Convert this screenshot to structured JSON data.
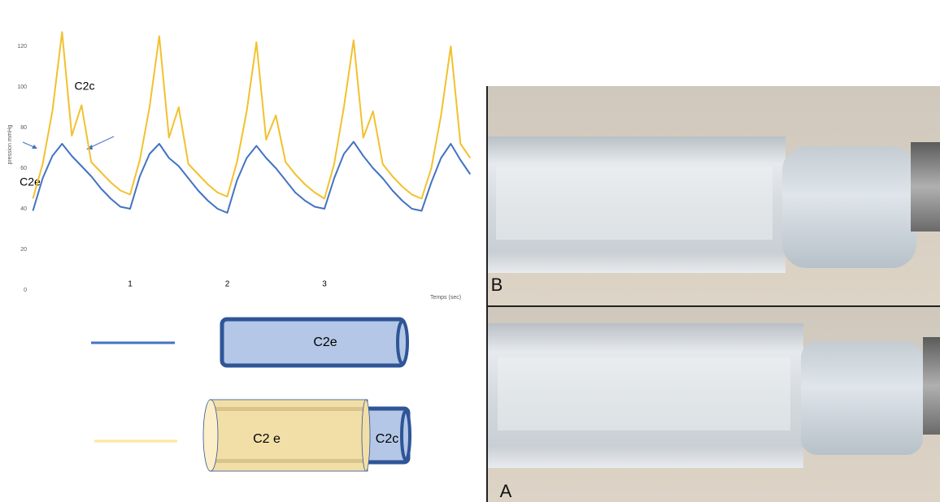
{
  "chart_data": {
    "type": "line",
    "x": [
      0,
      0.1,
      0.2,
      0.3,
      0.4,
      0.5,
      0.6,
      0.7,
      0.8,
      0.9,
      1,
      1.1,
      1.2,
      1.3,
      1.4,
      1.5,
      1.6,
      1.7,
      1.8,
      1.9,
      2,
      2.1,
      2.2,
      2.3,
      2.4,
      2.5,
      2.6,
      2.7,
      2.8,
      2.9,
      3,
      3.1,
      3.2,
      3.3,
      3.4,
      3.5,
      3.6,
      3.7,
      3.8,
      3.9,
      4,
      4.1,
      4.2,
      4.3,
      4.4,
      4.5
    ],
    "series": [
      {
        "name": "C2e",
        "color": "#4472c4",
        "values": [
          39,
          55,
          66,
          72,
          66,
          61,
          56,
          50,
          45,
          41,
          40,
          56,
          67,
          72,
          65,
          61,
          55,
          49,
          44,
          40,
          38,
          54,
          65,
          71,
          65,
          60,
          54,
          48,
          44,
          41,
          40,
          55,
          67,
          73,
          66,
          60,
          55,
          49,
          44,
          40,
          39,
          53,
          65,
          72,
          64,
          57
        ]
      },
      {
        "name": "C2c",
        "color": "#f2c12e",
        "values": [
          45,
          62,
          88,
          127,
          76,
          91,
          63,
          58,
          53,
          49,
          47,
          64,
          90,
          125,
          75,
          90,
          62,
          57,
          52,
          48,
          46,
          63,
          88,
          122,
          74,
          86,
          63,
          57,
          52,
          48,
          45,
          62,
          90,
          123,
          75,
          88,
          62,
          56,
          51,
          47,
          45,
          60,
          86,
          120,
          72,
          65
        ]
      }
    ],
    "xlim": [
      0,
      4.5
    ],
    "ylim": [
      0,
      128
    ],
    "xticks": [
      1,
      2,
      3
    ],
    "yticks": [
      0,
      20,
      40,
      60,
      80,
      100,
      120
    ],
    "xlabel": "Temps (sec)",
    "ylabel": "pression mmHg",
    "grid": false,
    "annotations": [
      "C2c",
      "C2e"
    ],
    "diagram_outer_label": "C2 e",
    "photo_labels": [
      "B",
      "A"
    ]
  }
}
